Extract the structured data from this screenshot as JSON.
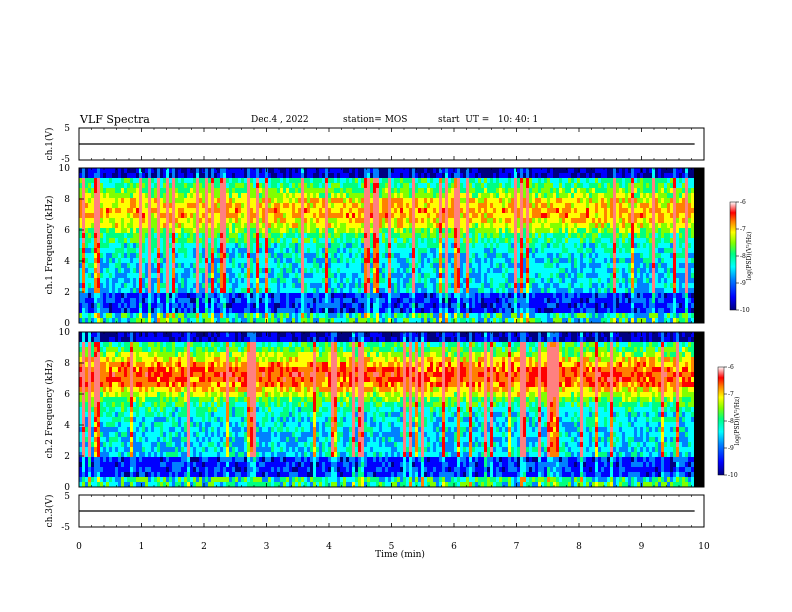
{
  "header": {
    "title": "VLF Spectra",
    "date": "Dec.4 , 2022",
    "station": "station= MOS",
    "start": "start  UT =   10: 40: 1"
  },
  "colors": {
    "colormap": [
      "#000080",
      "#0000ff",
      "#0080ff",
      "#00ffff",
      "#00ff80",
      "#80ff00",
      "#ffff00",
      "#ff8000",
      "#ff0000",
      "#ff8080",
      "#ffffff"
    ],
    "background": "#000000"
  },
  "chart_data": [
    {
      "type": "line",
      "name": "ch1-waveform",
      "ylabel": "ch.1(V)",
      "ylim": [
        -5,
        5
      ],
      "yticks": [
        "5",
        "-5"
      ],
      "series": [
        {
          "x": [
            0,
            9.85
          ],
          "y": [
            0,
            0
          ]
        }
      ]
    },
    {
      "type": "heatmap",
      "name": "ch1-spectrogram",
      "ylabel": "ch.1 Frequency (kHz)",
      "ylim": [
        0,
        10
      ],
      "yticks": [
        "0",
        "2",
        "4",
        "6",
        "8",
        "10"
      ],
      "xlim": [
        0,
        9.85
      ],
      "colorbar": {
        "label": "log(PSD)(V²/Hz)",
        "range": [
          -10,
          -6
        ],
        "ticks": [
          "-6",
          "-7",
          "-8",
          "-9",
          "-10"
        ]
      }
    },
    {
      "type": "heatmap",
      "name": "ch2-spectrogram",
      "ylabel": "ch.2 Frequency (kHz)",
      "ylim": [
        0,
        10
      ],
      "yticks": [
        "0",
        "2",
        "4",
        "6",
        "8",
        "10"
      ],
      "xlim": [
        0,
        9.85
      ],
      "colorbar": {
        "label": "log(PSD)(V²/Hz)",
        "range": [
          -10,
          -6
        ],
        "ticks": [
          "-6",
          "-7",
          "-8",
          "-9",
          "-10"
        ]
      }
    },
    {
      "type": "line",
      "name": "ch3-waveform",
      "ylabel": "ch.3(V)",
      "ylim": [
        -5,
        5
      ],
      "yticks": [
        "5",
        "-5"
      ],
      "series": [
        {
          "x": [
            0,
            9.85
          ],
          "y": [
            0,
            0
          ]
        }
      ]
    }
  ],
  "xaxis": {
    "label": "Time (min)",
    "range": [
      0,
      10
    ],
    "ticks": [
      "0",
      "1",
      "2",
      "3",
      "4",
      "5",
      "6",
      "7",
      "8",
      "9",
      "10"
    ]
  }
}
